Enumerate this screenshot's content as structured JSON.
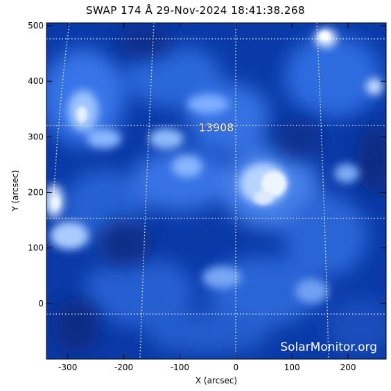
{
  "chart_data": {
    "type": "heatmap",
    "title": "SWAP 174 Å 29-Nov-2024 18:41:38.268",
    "xlabel": "X (arcsec)",
    "ylabel": "Y (arcsec)",
    "xlim": [
      -338,
      268
    ],
    "ylim": [
      -100,
      505
    ],
    "x_ticks": [
      -300,
      -200,
      -100,
      0,
      100,
      200
    ],
    "y_ticks": [
      0,
      100,
      200,
      300,
      400,
      500
    ],
    "colormap": [
      "#001a66",
      "#0038a8",
      "#2f6fe0",
      "#9cc4ff",
      "#ffffff"
    ],
    "grid": "heliographic dotted",
    "annotations": [
      {
        "text": "13908",
        "x": -35,
        "y": 310
      }
    ],
    "credit": "SolarMonitor.org"
  }
}
